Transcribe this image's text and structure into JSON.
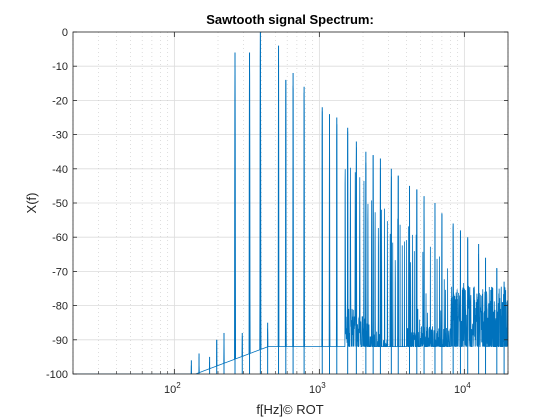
{
  "chart_data": {
    "type": "line",
    "title": "Sawtooth signal Spectrum:",
    "xlabel": "f[Hz]© ROT",
    "ylabel": "X(f)",
    "xscale": "log",
    "xlim": [
      20,
      20000
    ],
    "ylim": [
      -100,
      0
    ],
    "grid": true,
    "minor_grid": true,
    "line_color": "#0072BD",
    "x_ticks": [
      {
        "value": 100,
        "base": "10",
        "exp": "2"
      },
      {
        "value": 1000,
        "base": "10",
        "exp": "3"
      },
      {
        "value": 10000,
        "base": "10",
        "exp": "4"
      }
    ],
    "y_ticks": [
      {
        "value": 0,
        "label": "0"
      },
      {
        "value": -10,
        "label": "-10"
      },
      {
        "value": -20,
        "label": "-20"
      },
      {
        "value": -30,
        "label": "-30"
      },
      {
        "value": -40,
        "label": "-40"
      },
      {
        "value": -50,
        "label": "-50"
      },
      {
        "value": -60,
        "label": "-60"
      },
      {
        "value": -70,
        "label": "-70"
      },
      {
        "value": -80,
        "label": "-80"
      },
      {
        "value": -90,
        "label": "-90"
      },
      {
        "value": -100,
        "label": "-100"
      }
    ],
    "series": [
      {
        "fundamental_hz": 131,
        "peaks": [
          {
            "f": 131,
            "db": -96
          },
          {
            "f": 148,
            "db": -94
          },
          {
            "f": 175,
            "db": -95
          },
          {
            "f": 196,
            "db": -90
          },
          {
            "f": 220,
            "db": -88
          },
          {
            "f": 262,
            "db": -6
          },
          {
            "f": 294,
            "db": -88
          },
          {
            "f": 330,
            "db": -6
          },
          {
            "f": 392,
            "db": 0
          },
          {
            "f": 440,
            "db": -85
          },
          {
            "f": 523,
            "db": -4
          },
          {
            "f": 587,
            "db": -14
          },
          {
            "f": 659,
            "db": -12
          },
          {
            "f": 785,
            "db": -16
          },
          {
            "f": 1047,
            "db": -22
          },
          {
            "f": 1175,
            "db": -24
          },
          {
            "f": 1319,
            "db": -25
          },
          {
            "f": 1568,
            "db": -28
          },
          {
            "f": 1800,
            "db": -32
          },
          {
            "f": 2093,
            "db": -35
          },
          {
            "f": 2350,
            "db": -36
          },
          {
            "f": 2637,
            "db": -37
          },
          {
            "f": 3136,
            "db": -40
          },
          {
            "f": 3500,
            "db": -42
          },
          {
            "f": 4186,
            "db": -45
          },
          {
            "f": 4700,
            "db": -46
          },
          {
            "f": 5274,
            "db": -48
          },
          {
            "f": 6272,
            "db": -50
          },
          {
            "f": 7000,
            "db": -53
          },
          {
            "f": 8372,
            "db": -56
          },
          {
            "f": 9400,
            "db": -58
          },
          {
            "f": 10548,
            "db": -60
          },
          {
            "f": 12544,
            "db": -62
          },
          {
            "f": 14000,
            "db": -66
          },
          {
            "f": 16744,
            "db": -69
          },
          {
            "f": 18800,
            "db": -73
          }
        ]
      }
    ]
  }
}
